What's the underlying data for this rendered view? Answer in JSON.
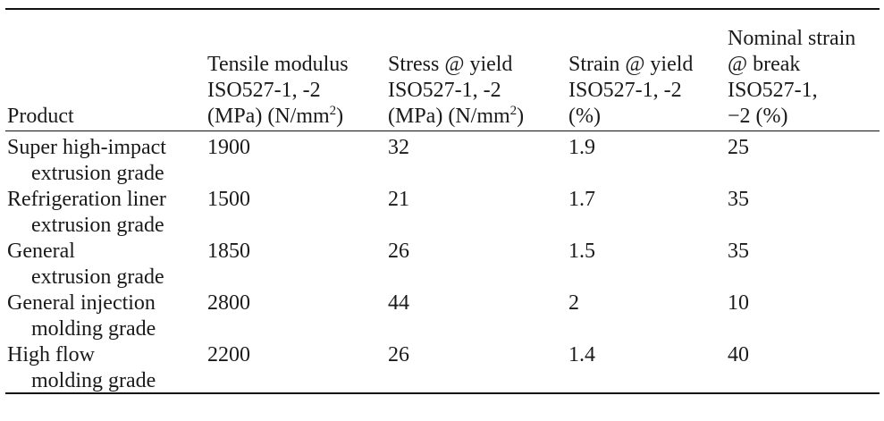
{
  "table": {
    "headers": [
      {
        "lines": [
          "Product"
        ]
      },
      {
        "lines": [
          "Tensile modulus",
          "ISO527-1, -2"
        ],
        "unit_prefix": "(MPa) (N/mm",
        "unit_sup": "2",
        "unit_suffix": ")"
      },
      {
        "lines": [
          "Stress @ yield",
          "ISO527-1, -2"
        ],
        "unit_prefix": "(MPa) (N/mm",
        "unit_sup": "2",
        "unit_suffix": ")"
      },
      {
        "lines": [
          "Strain @ yield",
          "ISO527-1, -2",
          "(%)"
        ]
      },
      {
        "lines": [
          "Nominal strain",
          "@ break",
          "ISO527-1,",
          "−2 (%)"
        ]
      }
    ],
    "rows": [
      {
        "product": [
          "Super high-impact",
          "extrusion grade"
        ],
        "tensile_modulus": "1900",
        "stress_yield": "32",
        "strain_yield": "1.9",
        "nominal_strain_break": "25"
      },
      {
        "product": [
          "Refrigeration liner",
          "extrusion grade"
        ],
        "tensile_modulus": "1500",
        "stress_yield": "21",
        "strain_yield": "1.7",
        "nominal_strain_break": "35"
      },
      {
        "product": [
          "General",
          "extrusion grade"
        ],
        "tensile_modulus": "1850",
        "stress_yield": "26",
        "strain_yield": "1.5",
        "nominal_strain_break": "35"
      },
      {
        "product": [
          "General injection",
          "molding grade"
        ],
        "tensile_modulus": "2800",
        "stress_yield": "44",
        "strain_yield": "2",
        "nominal_strain_break": "10"
      },
      {
        "product": [
          "High flow",
          "molding grade"
        ],
        "tensile_modulus": "2200",
        "stress_yield": "26",
        "strain_yield": "1.4",
        "nominal_strain_break": "40"
      }
    ]
  }
}
